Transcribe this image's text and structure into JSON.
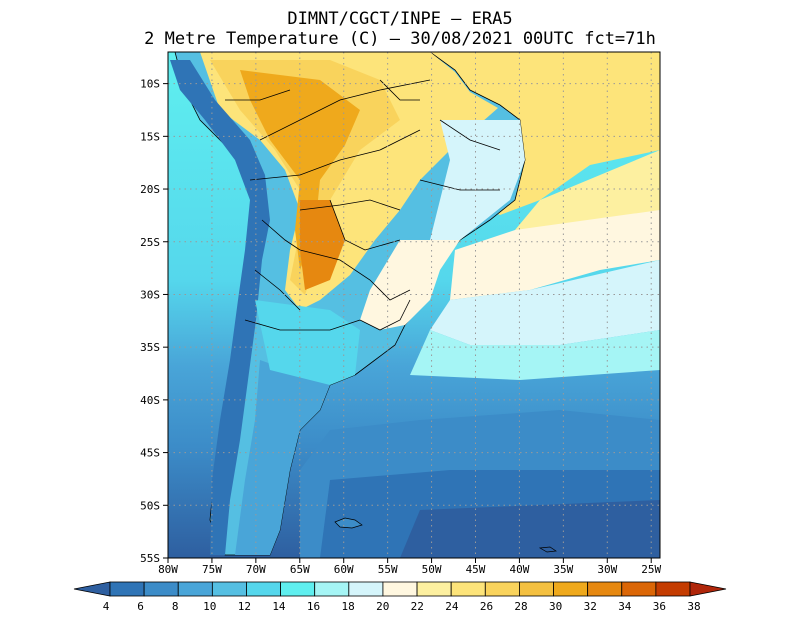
{
  "header": {
    "line1": "DIMNT/CGCT/INPE –  ERA5",
    "line2": "2 Metre Temperature (C) –  30/08/2021 00UTC fct=71h"
  },
  "map": {
    "lat_range": [
      -55,
      -7
    ],
    "lon_range": [
      -80,
      -24
    ],
    "lat_ticks": [
      "10S",
      "15S",
      "20S",
      "25S",
      "30S",
      "35S",
      "40S",
      "45S",
      "50S",
      "55S"
    ],
    "lon_ticks": [
      "80W",
      "75W",
      "70W",
      "65W",
      "60W",
      "55W",
      "50W",
      "45W",
      "40W",
      "35W",
      "30W",
      "25W"
    ]
  },
  "colorbar": {
    "labels": [
      "4",
      "6",
      "8",
      "10",
      "12",
      "14",
      "16",
      "18",
      "20",
      "22",
      "24",
      "26",
      "28",
      "30",
      "32",
      "34",
      "36",
      "38"
    ],
    "colors": [
      "#2e5fa0",
      "#2f74b6",
      "#3c8cc8",
      "#49a5d8",
      "#55bfe2",
      "#55d7ec",
      "#5fefef",
      "#a5f5f5",
      "#d5f5fb",
      "#fff7e0",
      "#fdf0a0",
      "#fde47a",
      "#f9d35c",
      "#f4c040",
      "#efa91c",
      "#e68810",
      "#db6606",
      "#c43c00",
      "#b0260a"
    ]
  }
}
